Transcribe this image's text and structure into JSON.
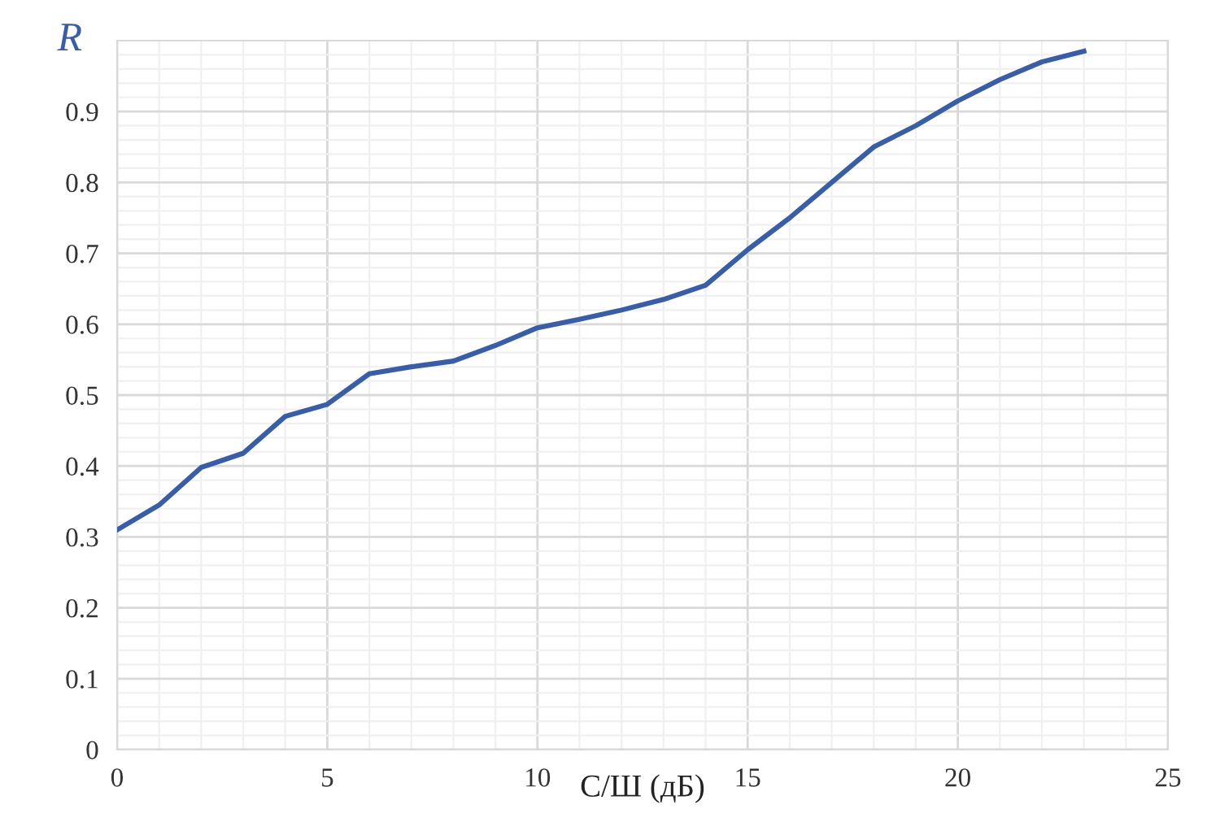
{
  "chart_data": {
    "type": "line",
    "xlabel": "С/Ш (дБ)",
    "ylabel": "R",
    "x": [
      0,
      1,
      2,
      3,
      4,
      5,
      6,
      7,
      8,
      9,
      10,
      11,
      12,
      13,
      14,
      15,
      16,
      17,
      18,
      19,
      20,
      21,
      22,
      23
    ],
    "series": [
      {
        "color": "#3a5ea6",
        "values": [
          0.31,
          0.345,
          0.398,
          0.418,
          0.47,
          0.487,
          0.53,
          0.54,
          0.548,
          0.57,
          0.595,
          0.607,
          0.62,
          0.635,
          0.655,
          0.705,
          0.75,
          0.8,
          0.85,
          0.88,
          0.915,
          0.945,
          0.97,
          0.985
        ]
      }
    ],
    "xlim": [
      0,
      25
    ],
    "ylim": [
      0,
      1
    ],
    "xticks": [
      0,
      5,
      10,
      15,
      20,
      25
    ],
    "yticks": [
      0,
      0.1,
      0.2,
      0.3,
      0.4,
      0.5,
      0.6,
      0.7,
      0.8,
      0.9
    ],
    "grid": true,
    "legend": false,
    "marker": "none",
    "line_style": "solid"
  }
}
